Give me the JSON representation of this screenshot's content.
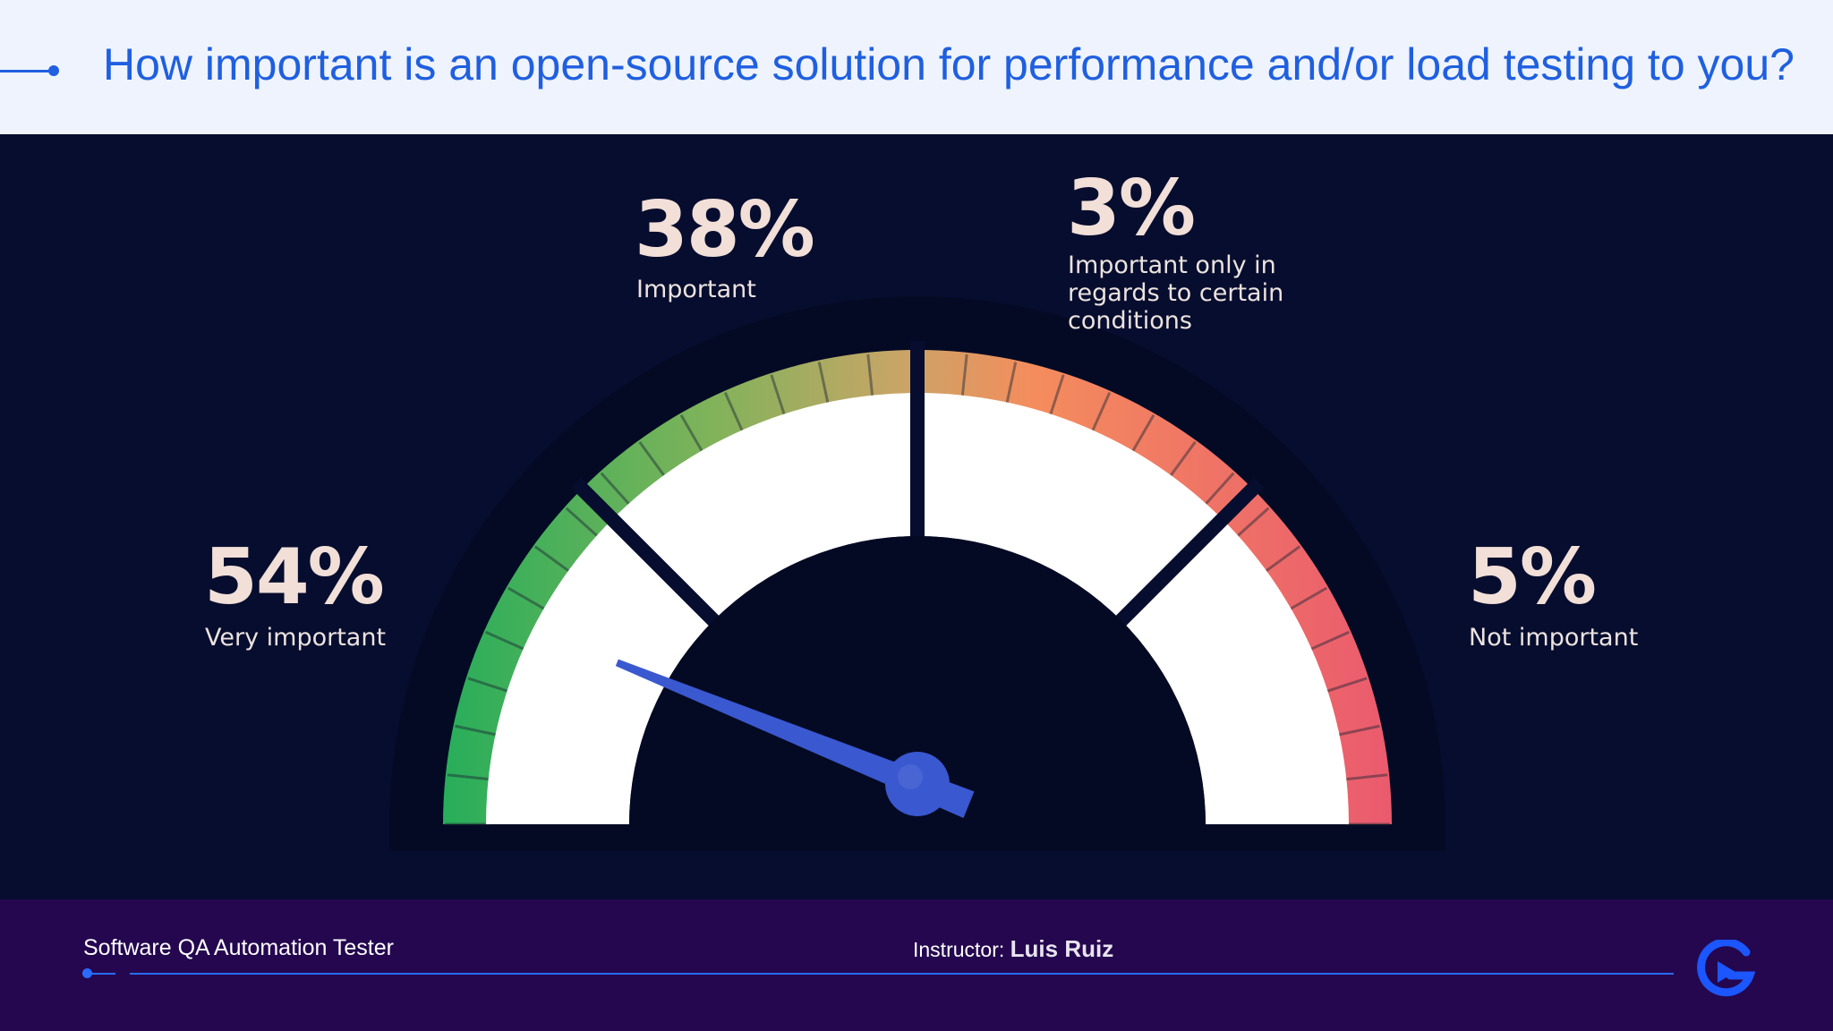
{
  "title": "How important is an open-source solution for performance and/or load testing to you?",
  "chart_data": {
    "type": "gauge",
    "title": "How important is an open-source solution for performance and/or load testing to you?",
    "segments": [
      {
        "label": "Very important",
        "value": 54,
        "value_label": "54%"
      },
      {
        "label": "Important",
        "value": 38,
        "value_label": "38%"
      },
      {
        "label": "Important only in regards to certain conditions",
        "value": 3,
        "value_label": "3%"
      },
      {
        "label": "Not important",
        "value": 5,
        "value_label": "5%"
      }
    ],
    "gradient_colors": [
      "#27ae5a",
      "#7fb35a",
      "#c8a567",
      "#f48d5d",
      "#ea5a6e"
    ],
    "needle_color": "#3a58d0",
    "needle_angle_deg": 158
  },
  "footer": {
    "course": "Software QA Automation Tester",
    "instructor_label": "Instructor:",
    "instructor_name": "Luis Ruiz"
  },
  "colors": {
    "accent": "#1f5fe0",
    "panel_bg": "#070d2e",
    "footer_bg": "#24074f"
  },
  "icons": {
    "logo": "brand-logo-icon"
  }
}
